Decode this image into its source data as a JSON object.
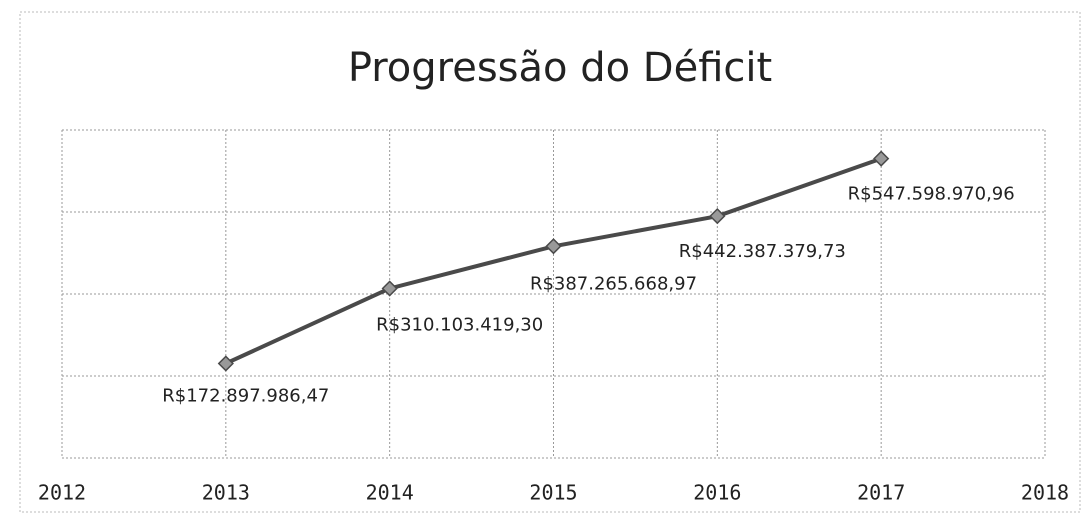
{
  "chart_data": {
    "type": "line",
    "title": "Progressão do Déficit",
    "x": [
      2013,
      2014,
      2015,
      2016,
      2017
    ],
    "series": [
      {
        "color": "#4a4a4a",
        "values": [
          172897986.47,
          310103419.3,
          387265668.97,
          442387379.73,
          547598970.96
        ],
        "value_labels": [
          "R$172.897.986,47",
          "R$310.103.419,30",
          "R$387.265.668,97",
          "R$442.387.379,73",
          "R$547.598.970,96"
        ]
      }
    ],
    "xlim": [
      2012,
      2018
    ],
    "xticks": [
      2012,
      2013,
      2014,
      2015,
      2016,
      2017,
      2018
    ],
    "ylim": [
      0,
      600000000
    ],
    "yticks": [
      0,
      150000000,
      300000000,
      450000000,
      600000000
    ],
    "grid": true
  }
}
